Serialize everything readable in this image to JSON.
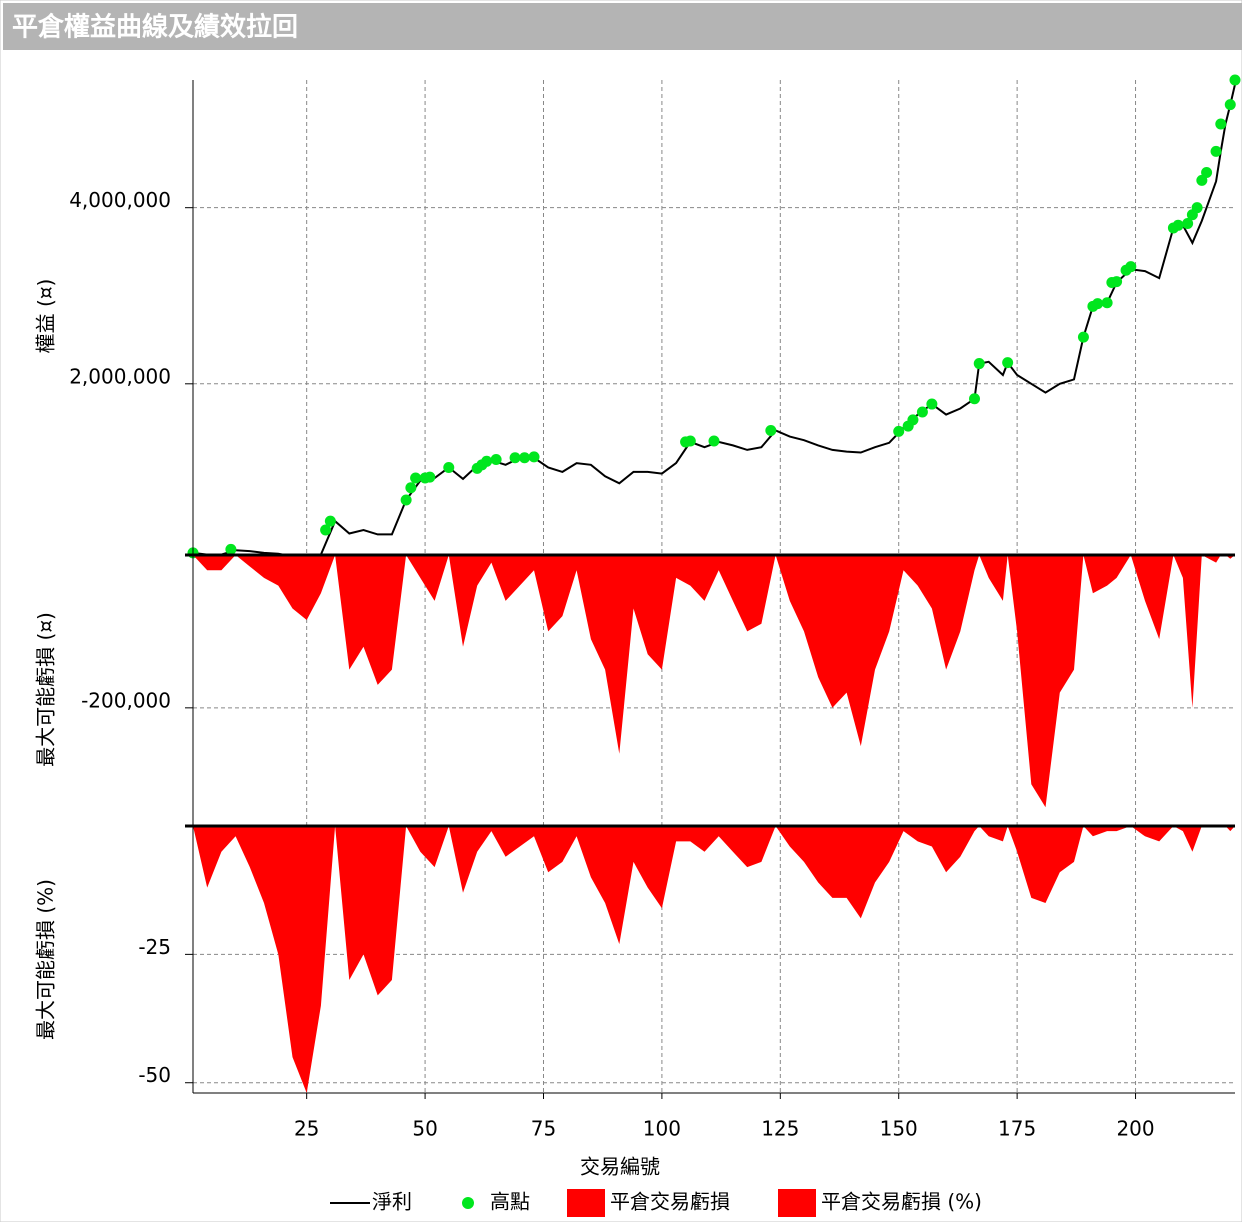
{
  "chart_data": {
    "type": "panels",
    "title": "平倉權益曲線及績效拉回",
    "xlabel": "交易編號",
    "xlim": [
      1,
      221
    ],
    "xticks": [
      25,
      50,
      75,
      100,
      125,
      150,
      175,
      200
    ],
    "x": [
      1,
      4,
      7,
      10,
      13,
      16,
      19,
      22,
      25,
      28,
      31,
      34,
      37,
      40,
      43,
      46,
      49,
      52,
      55,
      58,
      61,
      64,
      67,
      70,
      73,
      76,
      79,
      82,
      85,
      88,
      91,
      94,
      97,
      100,
      103,
      106,
      109,
      112,
      115,
      118,
      121,
      124,
      127,
      130,
      133,
      136,
      139,
      142,
      145,
      148,
      151,
      154,
      157,
      160,
      163,
      166,
      167,
      169,
      172,
      173,
      175,
      178,
      181,
      184,
      187,
      189,
      191,
      194,
      196,
      199,
      202,
      205,
      208,
      210,
      212,
      214,
      217,
      218,
      219,
      220,
      221
    ],
    "panels": [
      {
        "type": "line",
        "ylabel": "權益 (¤)",
        "ylim": [
          90000,
          5450000
        ],
        "yticks": [
          {
            "value": 2000000,
            "label": "2,000,000"
          },
          {
            "value": 4000000,
            "label": "4,000,000"
          }
        ],
        "series": [
          {
            "name": "淨利",
            "type": "line",
            "color": "#000000",
            "values": [
              80000,
              60000,
              60000,
              110000,
              100000,
              80000,
              70000,
              40000,
              30000,
              60000,
              440000,
              300000,
              340000,
              290000,
              290000,
              680000,
              900000,
              930000,
              1050000,
              920000,
              1070000,
              1130000,
              1080000,
              1160000,
              1160000,
              1050000,
              1000000,
              1100000,
              1080000,
              950000,
              870000,
              1000000,
              1000000,
              980000,
              1100000,
              1340000,
              1280000,
              1340000,
              1300000,
              1250000,
              1280000,
              1470000,
              1400000,
              1360000,
              1300000,
              1250000,
              1230000,
              1220000,
              1280000,
              1330000,
              1500000,
              1650000,
              1770000,
              1650000,
              1720000,
              1830000,
              2230000,
              2250000,
              2100000,
              2240000,
              2100000,
              2000000,
              1900000,
              2000000,
              2050000,
              2530000,
              2880000,
              2920000,
              3150000,
              3300000,
              3280000,
              3200000,
              3770000,
              3800000,
              3600000,
              3850000,
              4300000,
              4640000,
              4950000,
              5170000,
              5400000
            ]
          },
          {
            "name": "高點",
            "type": "scatter",
            "color": "#00e61e",
            "x": [
              1,
              9,
              29,
              30,
              46,
              47,
              48,
              50,
              51,
              55,
              61,
              62,
              63,
              65,
              69,
              71,
              73,
              105,
              106,
              111,
              123,
              150,
              152,
              153,
              155,
              157,
              166,
              167,
              173,
              189,
              191,
              192,
              194,
              195,
              196,
              198,
              199,
              208,
              209,
              211,
              212,
              213,
              214,
              215,
              217,
              218,
              220,
              221
            ],
            "values": [
              80000,
              120000,
              340000,
              440000,
              680000,
              820000,
              930000,
              930000,
              940000,
              1050000,
              1040000,
              1080000,
              1120000,
              1140000,
              1160000,
              1160000,
              1170000,
              1340000,
              1350000,
              1350000,
              1470000,
              1460000,
              1520000,
              1590000,
              1680000,
              1770000,
              1830000,
              2230000,
              2240000,
              2530000,
              2880000,
              2910000,
              2920000,
              3150000,
              3160000,
              3290000,
              3330000,
              3770000,
              3800000,
              3820000,
              3920000,
              4000000,
              4310000,
              4400000,
              4640000,
              4950000,
              5170000,
              5450000
            ]
          }
        ]
      },
      {
        "type": "area",
        "ylabel": "最大可能虧損 (¤)",
        "ylim": [
          -352000,
          0
        ],
        "yticks": [
          {
            "value": -200000,
            "label": "-200,000"
          }
        ],
        "series": [
          {
            "name": "平倉交易虧損",
            "color": "#ff0000",
            "values": [
              0,
              -20000,
              -20000,
              0,
              -15000,
              -30000,
              -40000,
              -70000,
              -85000,
              -50000,
              0,
              -150000,
              -120000,
              -170000,
              -150000,
              0,
              -30000,
              -60000,
              0,
              -120000,
              -40000,
              -10000,
              -60000,
              -40000,
              -20000,
              -100000,
              -80000,
              -20000,
              -110000,
              -150000,
              -260000,
              -70000,
              -130000,
              -150000,
              -30000,
              -40000,
              -60000,
              -20000,
              -60000,
              -100000,
              -90000,
              0,
              -60000,
              -100000,
              -160000,
              -200000,
              -180000,
              -250000,
              -150000,
              -100000,
              -20000,
              -40000,
              -70000,
              -150000,
              -100000,
              -20000,
              0,
              -30000,
              -60000,
              0,
              -100000,
              -300000,
              -330000,
              -180000,
              -150000,
              0,
              -50000,
              -40000,
              -30000,
              0,
              -60000,
              -110000,
              0,
              -30000,
              -200000,
              0,
              -10000,
              0,
              0,
              -5000,
              0
            ]
          }
        ]
      },
      {
        "type": "area",
        "ylabel": "最大可能虧損 (%)",
        "ylim": [
          -52,
          0
        ],
        "yticks": [
          -25,
          -50
        ],
        "series": [
          {
            "name": "平倉交易虧損 (%)",
            "color": "#ff0000",
            "values": [
              0,
              -12,
              -5,
              -2,
              -8,
              -15,
              -25,
              -45,
              -52,
              -35,
              0,
              -30,
              -25,
              -33,
              -30,
              0,
              -5,
              -8,
              0,
              -13,
              -5,
              -1,
              -6,
              -4,
              -2,
              -9,
              -7,
              -2,
              -10,
              -15,
              -23,
              -7,
              -12,
              -16,
              -3,
              -3,
              -5,
              -2,
              -5,
              -8,
              -7,
              0,
              -4,
              -7,
              -11,
              -14,
              -14,
              -18,
              -11,
              -7,
              -1,
              -3,
              -4,
              -9,
              -6,
              -1,
              0,
              -2,
              -3,
              0,
              -5,
              -14,
              -15,
              -9,
              -7,
              0,
              -2,
              -1,
              -1,
              0,
              -2,
              -3,
              0,
              -1,
              -5,
              0,
              0,
              0,
              0,
              -1,
              0
            ]
          }
        ]
      }
    ]
  }
}
